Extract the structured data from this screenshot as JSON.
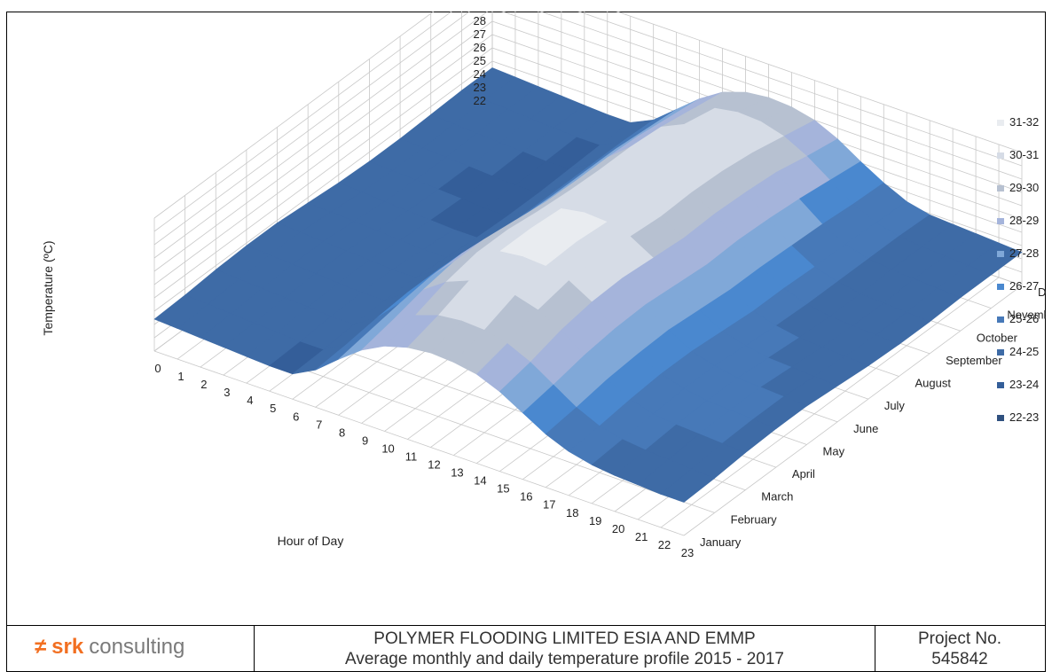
{
  "chart_data": {
    "type": "surface3d",
    "title": "",
    "xlabel": "Hour of Day",
    "ylabel": "",
    "zlabel": "Temperature (ºC)",
    "x": [
      0,
      1,
      2,
      3,
      4,
      5,
      6,
      7,
      8,
      9,
      10,
      11,
      12,
      13,
      14,
      15,
      16,
      17,
      18,
      19,
      20,
      21,
      22,
      23
    ],
    "y": [
      "January",
      "February",
      "March",
      "April",
      "May",
      "June",
      "July",
      "August",
      "September",
      "October",
      "November",
      "December"
    ],
    "zlim": [
      22,
      32
    ],
    "z_ticks": [
      22,
      23,
      24,
      25,
      26,
      27,
      28,
      29,
      30,
      31,
      32
    ],
    "grid": true,
    "legend_position": "right",
    "legend": [
      {
        "label": "31-32",
        "color": "#e9ecf0"
      },
      {
        "label": "30-31",
        "color": "#d6dce6"
      },
      {
        "label": "29-30",
        "color": "#b7c1d1"
      },
      {
        "label": "28-29",
        "color": "#a5b4db"
      },
      {
        "label": "27-28",
        "color": "#80a8d8"
      },
      {
        "label": "26-27",
        "color": "#4a88cf"
      },
      {
        "label": "25-26",
        "color": "#4779b8"
      },
      {
        "label": "24-25",
        "color": "#3e6ba6"
      },
      {
        "label": "23-24",
        "color": "#345e99"
      },
      {
        "label": "22-23",
        "color": "#2f507f"
      }
    ],
    "values": [
      [
        24.4,
        24.3,
        24.2,
        24.1,
        24.0,
        23.9,
        23.9,
        24.8,
        26.2,
        27.5,
        28.4,
        28.9,
        29.1,
        29.0,
        28.7,
        28.0,
        27.0,
        26.0,
        25.3,
        24.9,
        24.7,
        24.6,
        24.5,
        24.5
      ],
      [
        24.5,
        24.4,
        24.3,
        24.2,
        24.1,
        24.0,
        24.0,
        25.0,
        26.6,
        28.0,
        29.0,
        29.6,
        29.8,
        29.7,
        29.3,
        28.5,
        27.4,
        26.3,
        25.5,
        25.1,
        24.9,
        24.8,
        24.7,
        24.6
      ],
      [
        24.7,
        24.6,
        24.5,
        24.4,
        24.3,
        24.2,
        24.2,
        25.3,
        27.0,
        28.6,
        29.8,
        30.5,
        30.7,
        30.6,
        30.1,
        29.2,
        27.9,
        26.7,
        25.8,
        25.3,
        25.1,
        25.0,
        24.9,
        24.8
      ],
      [
        24.8,
        24.7,
        24.6,
        24.5,
        24.4,
        24.3,
        24.3,
        25.5,
        27.3,
        29.0,
        30.3,
        31.0,
        31.2,
        31.1,
        30.6,
        29.6,
        28.2,
        26.9,
        26.0,
        25.5,
        25.2,
        25.1,
        25.0,
        24.9
      ],
      [
        24.8,
        24.7,
        24.6,
        24.5,
        24.4,
        24.3,
        24.3,
        25.5,
        27.3,
        29.0,
        30.3,
        31.0,
        31.3,
        31.2,
        30.7,
        29.7,
        28.3,
        27.0,
        26.0,
        25.5,
        25.2,
        25.1,
        25.0,
        24.9
      ],
      [
        24.6,
        24.5,
        24.4,
        24.3,
        24.2,
        24.1,
        24.1,
        25.2,
        27.0,
        28.7,
        30.0,
        30.8,
        31.1,
        31.0,
        30.5,
        29.5,
        28.1,
        26.8,
        25.8,
        25.3,
        25.0,
        24.9,
        24.8,
        24.7
      ],
      [
        24.4,
        24.3,
        24.2,
        24.1,
        24.0,
        23.9,
        23.9,
        25.0,
        26.7,
        28.4,
        29.8,
        30.6,
        30.9,
        30.8,
        30.3,
        29.3,
        27.9,
        26.6,
        25.6,
        25.1,
        24.8,
        24.7,
        24.6,
        24.5
      ],
      [
        24.3,
        24.2,
        24.1,
        24.0,
        23.9,
        23.8,
        23.8,
        24.9,
        26.6,
        28.3,
        29.7,
        30.6,
        31.0,
        30.9,
        30.4,
        29.4,
        28.0,
        26.6,
        25.6,
        25.0,
        24.7,
        24.6,
        24.5,
        24.4
      ],
      [
        24.3,
        24.2,
        24.1,
        24.0,
        23.9,
        23.8,
        23.8,
        24.9,
        26.6,
        28.3,
        29.7,
        30.6,
        31.0,
        30.9,
        30.3,
        29.3,
        27.9,
        26.5,
        25.5,
        25.0,
        24.7,
        24.6,
        24.5,
        24.4
      ],
      [
        24.4,
        24.3,
        24.2,
        24.1,
        24.0,
        23.9,
        23.9,
        24.9,
        26.6,
        28.2,
        29.5,
        30.3,
        30.6,
        30.5,
        30.0,
        29.1,
        27.7,
        26.4,
        25.5,
        25.0,
        24.8,
        24.7,
        24.6,
        24.5
      ],
      [
        24.5,
        24.4,
        24.3,
        24.2,
        24.1,
        24.0,
        24.0,
        24.9,
        26.4,
        27.9,
        29.1,
        29.8,
        30.1,
        30.0,
        29.5,
        28.6,
        27.4,
        26.2,
        25.4,
        25.0,
        24.8,
        24.7,
        24.6,
        24.5
      ],
      [
        24.5,
        24.4,
        24.3,
        24.2,
        24.1,
        24.0,
        24.0,
        24.8,
        26.2,
        27.6,
        28.7,
        29.3,
        29.5,
        29.4,
        29.0,
        28.2,
        27.1,
        26.1,
        25.3,
        24.9,
        24.8,
        24.7,
        24.6,
        24.5
      ]
    ]
  },
  "footer": {
    "logo_mark": "≠",
    "logo_brand": "srk",
    "logo_word": "consulting",
    "title_line1": "POLYMER FLOODING LIMITED ESIA AND EMMP",
    "title_line2": "Average monthly and daily temperature profile 2015 - 2017",
    "project_label": "Project No.",
    "project_number": "545842"
  }
}
